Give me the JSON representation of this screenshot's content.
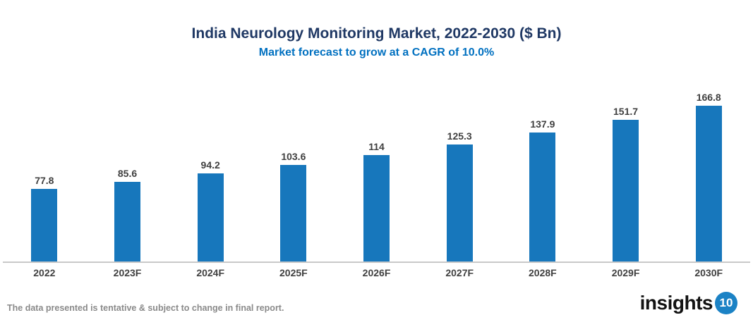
{
  "page": {
    "footer_note": "The data presented is tentative & subject to change in final report.",
    "logo": {
      "text": "insights",
      "badge": "10"
    }
  },
  "chart_data": {
    "type": "bar",
    "title": "India Neurology Monitoring Market, 2022-2030 ($ Bn)",
    "subtitle": "Market forecast to grow at a CAGR of 10.0%",
    "categories": [
      "2022",
      "2023F",
      "2024F",
      "2025F",
      "2026F",
      "2027F",
      "2028F",
      "2029F",
      "2030F"
    ],
    "values": [
      77.8,
      85.6,
      94.2,
      103.6,
      114,
      125.3,
      137.9,
      151.7,
      166.8
    ],
    "xlabel": "",
    "ylabel": "",
    "ylim": [
      0,
      180
    ],
    "grid": false,
    "legend": "none",
    "y_axis_visible": false,
    "colors": {
      "bar": "#1777BC",
      "title": "#1F3864",
      "subtitle": "#0070C0",
      "data_label": "#404040",
      "axis_line": "#C9C9C9",
      "logo_badge": "#1B82C5"
    }
  }
}
